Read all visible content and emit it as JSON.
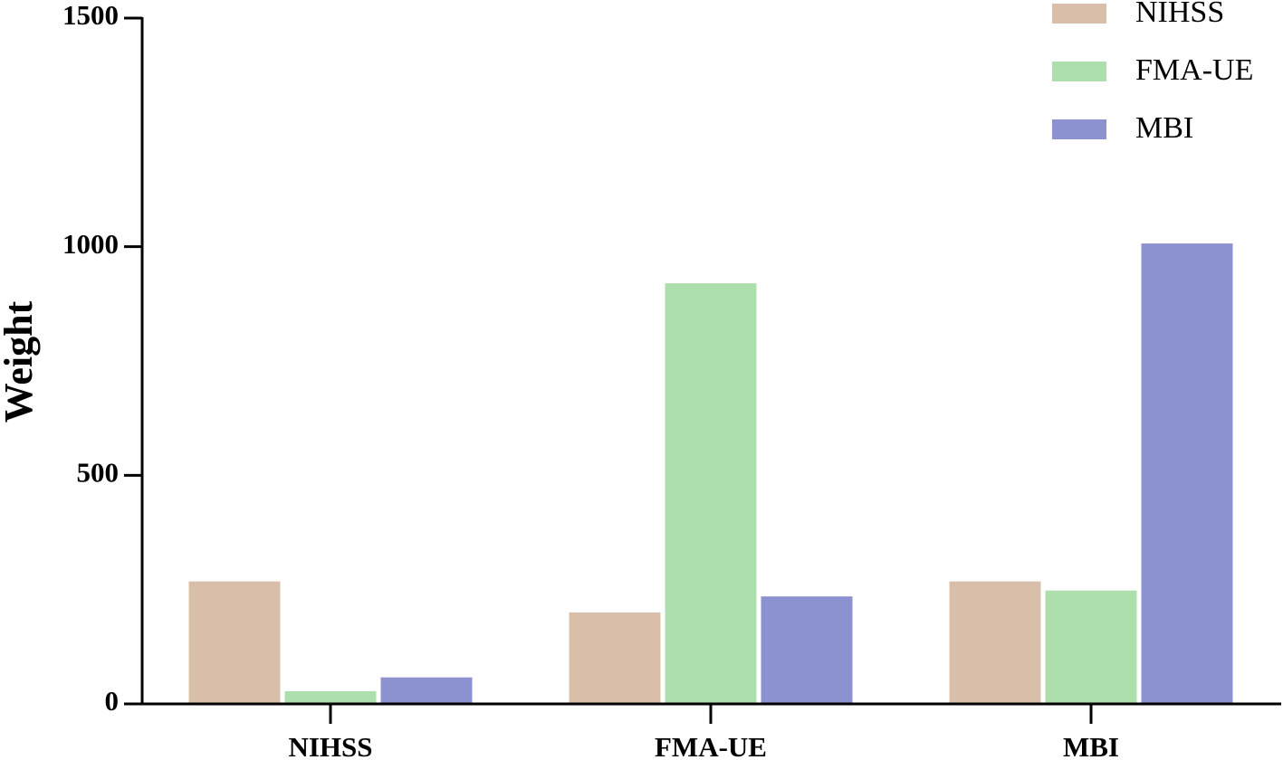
{
  "chart_data": {
    "type": "bar",
    "title": "",
    "xlabel": "",
    "ylabel": "Weight",
    "ylim": [
      0,
      1500
    ],
    "yticks": [
      0,
      500,
      1000,
      1500
    ],
    "grid": false,
    "legend_position": "top-right",
    "categories": [
      "NIHSS",
      "FMA-UE",
      "MBI"
    ],
    "series": [
      {
        "name": "NIHSS",
        "color": "#d9bfaa",
        "values": [
          268,
          200,
          268
        ]
      },
      {
        "name": "FMA-UE",
        "color": "#addfac",
        "values": [
          28,
          920,
          248
        ]
      },
      {
        "name": "MBI",
        "color": "#8c91cf",
        "values": [
          58,
          235,
          1007
        ]
      }
    ]
  }
}
